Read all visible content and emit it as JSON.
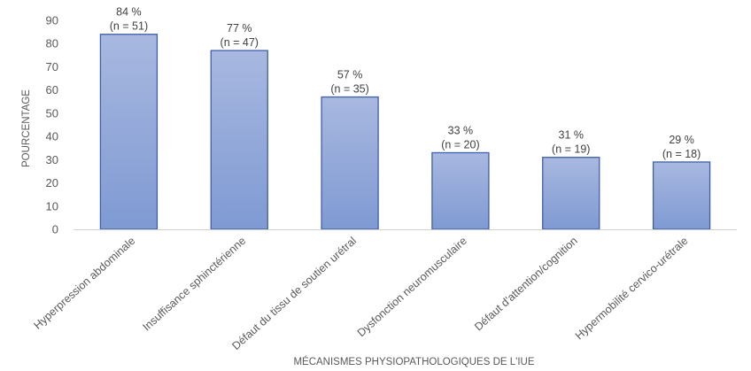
{
  "chart_data": {
    "type": "bar",
    "xlabel": "MÉCANISMES PHYSIOPATHOLOGIQUES DE L'IUE",
    "ylabel": "POURCENTAGE",
    "ylim": [
      0,
      90
    ],
    "yticks": [
      0,
      10,
      20,
      30,
      40,
      50,
      60,
      70,
      80,
      90
    ],
    "grid": false,
    "legend": "none",
    "categories": [
      "Hyperpression abdominale",
      "Insuffisance sphinctérienne",
      "Défaut du tissu de soutien urétral",
      "Dysfonction neuromusculaire",
      "Défaut d'attention/cognition",
      "Hypermobilité cervico-urétrale"
    ],
    "values": [
      84,
      77,
      57,
      33,
      31,
      29
    ],
    "data_labels": [
      {
        "pct": "84 %",
        "n": "(n = 51)"
      },
      {
        "pct": "77 %",
        "n": "(n = 47)"
      },
      {
        "pct": "57 %",
        "n": "(n = 35)"
      },
      {
        "pct": "33 %",
        "n": "(n = 20)"
      },
      {
        "pct": "31 %",
        "n": "(n = 19)"
      },
      {
        "pct": "29 %",
        "n": "(n = 18)"
      }
    ],
    "colors": {
      "bar_top": "#a8b8e0",
      "bar_bottom": "#7f9ad3",
      "bar_stroke": "#3f5fa8",
      "axis": "#d0d0d0"
    }
  }
}
